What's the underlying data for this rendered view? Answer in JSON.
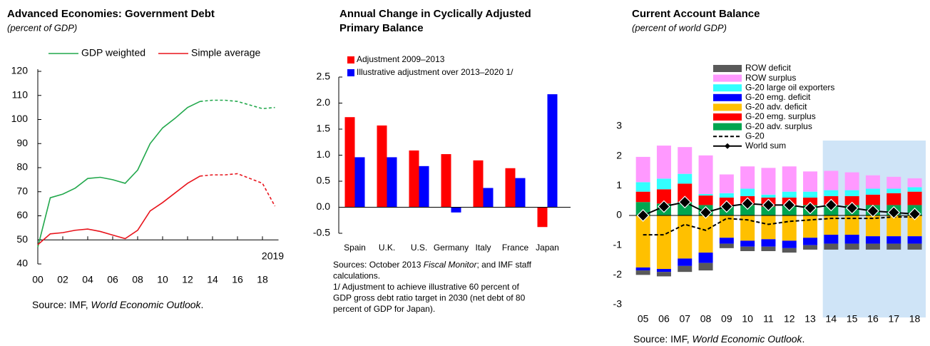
{
  "chart_data": [
    {
      "type": "line",
      "title": "Advanced Economies: Government Debt",
      "subtitle": "(percent of GDP)",
      "x": [
        2000,
        2001,
        2002,
        2003,
        2004,
        2005,
        2006,
        2007,
        2008,
        2009,
        2010,
        2011,
        2012,
        2013,
        2014,
        2015,
        2016,
        2017,
        2018,
        2019
      ],
      "xlim": [
        2000,
        2019
      ],
      "xticks": [
        {
          "value": 2000,
          "label": "00"
        },
        {
          "value": 2002,
          "label": "02"
        },
        {
          "value": 2004,
          "label": "04"
        },
        {
          "value": 2006,
          "label": "06"
        },
        {
          "value": 2008,
          "label": "08"
        },
        {
          "value": 2010,
          "label": "10"
        },
        {
          "value": 2012,
          "label": "12"
        },
        {
          "value": 2014,
          "label": "14"
        },
        {
          "value": 2016,
          "label": "16"
        },
        {
          "value": 2018,
          "label": "18"
        }
      ],
      "ylim": [
        40,
        120
      ],
      "yticks": [
        40,
        50,
        60,
        70,
        80,
        90,
        100,
        110,
        120
      ],
      "x_axis_at": 50,
      "projection_from": 2013,
      "series": [
        {
          "name": "GDP weighted",
          "color": "#22a84c",
          "values": [
            47,
            67.5,
            69,
            71.5,
            75.5,
            76,
            75,
            73.5,
            79,
            90,
            96.5,
            100.5,
            105,
            107.5,
            108,
            108,
            107.5,
            106,
            104.5,
            105
          ]
        },
        {
          "name": "Simple average",
          "color": "#e8141c",
          "values": [
            48,
            52.5,
            53,
            54,
            54.5,
            53.5,
            52,
            50.5,
            54,
            62,
            65.5,
            69.5,
            73.5,
            76.5,
            77,
            77,
            77.5,
            75.5,
            73.5,
            64
          ]
        }
      ],
      "annotation": "2019",
      "source": [
        {
          "text": "Source: IMF, "
        },
        {
          "text": "World Economic Outlook",
          "italic": true
        },
        {
          "text": "."
        }
      ]
    },
    {
      "type": "bar",
      "title": [
        "Annual Change in Cyclically Adjusted",
        "Primary Balance"
      ],
      "categories": [
        "Spain",
        "U.K.",
        "U.S.",
        "Germany",
        "Italy",
        "France",
        "Japan"
      ],
      "ylim": [
        -0.5,
        2.5
      ],
      "yticks": [
        -0.5,
        {
          "value": 0,
          "label": "0.0"
        },
        0.5,
        {
          "value": 1,
          "label": "1.0"
        },
        1.5,
        {
          "value": 2,
          "label": "2.0"
        },
        2.5
      ],
      "series": [
        {
          "name": "Adjustment 2009–2013",
          "color": "#ff0000",
          "values": [
            1.73,
            1.57,
            1.09,
            1.02,
            0.9,
            0.75,
            -0.38
          ]
        },
        {
          "name": "Illustrative adjustment over 2013–2020 1/",
          "color": "#0000ff",
          "values": [
            0.96,
            0.96,
            0.79,
            -0.1,
            0.37,
            0.56,
            2.17
          ]
        }
      ],
      "notes": [
        [
          {
            "text": "Sources: October 2013 "
          },
          {
            "text": "Fiscal Monitor",
            "italic": true
          },
          {
            "text": "; and IMF staff"
          }
        ],
        [
          {
            "text": "calculations."
          }
        ],
        [
          {
            "text": "1/ Adjustment to achieve illustrative 60 percent of"
          }
        ],
        [
          {
            "text": "GDP gross debt ratio target in 2030 (net debt of 80"
          }
        ],
        [
          {
            "text": "percent of GDP for Japan)."
          }
        ]
      ]
    },
    {
      "type": "stacked_bar",
      "title": "Current Account Balance",
      "subtitle": "(percent of world GDP)",
      "categories": [
        "05",
        "06",
        "07",
        "08",
        "09",
        "10",
        "11",
        "12",
        "13",
        "14",
        "15",
        "16",
        "17",
        "18"
      ],
      "ylim": [
        -3,
        3
      ],
      "yticks": [
        -3,
        -2,
        -1,
        0,
        1,
        2,
        3
      ],
      "projection_from": "14",
      "series": [
        {
          "name": "ROW deficit",
          "color": "#595959",
          "values": [
            -0.15,
            -0.15,
            -0.2,
            -0.25,
            -0.15,
            -0.15,
            -0.15,
            -0.15,
            -0.15,
            -0.2,
            -0.2,
            -0.2,
            -0.2,
            -0.2
          ]
        },
        {
          "name": "ROW surplus",
          "color": "#ff99ff",
          "values": [
            0.85,
            1.11,
            0.9,
            1.3,
            0.63,
            0.75,
            0.9,
            0.85,
            0.68,
            0.65,
            0.6,
            0.45,
            0.4,
            0.3
          ]
        },
        {
          "name": "G-20 large oil exporters",
          "color": "#33ffff",
          "values": [
            0.32,
            0.36,
            0.33,
            0.05,
            0.15,
            0.25,
            0.1,
            0.2,
            0.2,
            0.2,
            0.2,
            0.2,
            0.15,
            0.15
          ]
        },
        {
          "name": "G-20 emg. deficit",
          "color": "#0000ff",
          "values": [
            -0.1,
            -0.1,
            -0.25,
            -0.35,
            -0.2,
            -0.2,
            -0.25,
            -0.25,
            -0.25,
            -0.3,
            -0.3,
            -0.25,
            -0.25,
            -0.25
          ]
        },
        {
          "name": "G-20 adv. deficit",
          "color": "#ffc000",
          "values": [
            -1.75,
            -1.8,
            -1.45,
            -1.25,
            -0.75,
            -0.85,
            -0.8,
            -0.85,
            -0.75,
            -0.65,
            -0.65,
            -0.7,
            -0.7,
            -0.7
          ]
        },
        {
          "name": "G-20 emg. surplus",
          "color": "#ff0000",
          "values": [
            0.35,
            0.48,
            0.62,
            0.32,
            0.3,
            0.3,
            0.3,
            0.25,
            0.25,
            0.3,
            0.3,
            0.35,
            0.4,
            0.45
          ]
        },
        {
          "name": "G-20 adv. surplus",
          "color": "#00a550",
          "values": [
            0.45,
            0.4,
            0.45,
            0.35,
            0.3,
            0.35,
            0.3,
            0.35,
            0.35,
            0.35,
            0.35,
            0.35,
            0.35,
            0.35
          ]
        },
        {
          "name": "G-20",
          "type": "line",
          "dash": true,
          "color": "#000000",
          "values": [
            -0.65,
            -0.65,
            -0.3,
            -0.5,
            -0.1,
            -0.15,
            -0.3,
            -0.2,
            -0.15,
            -0.1,
            -0.1,
            -0.1,
            -0.05,
            -0.05
          ]
        },
        {
          "name": "World sum",
          "type": "line",
          "marker": "diamond",
          "color": "#000000",
          "values": [
            0,
            0.3,
            0.45,
            0.1,
            0.3,
            0.4,
            0.35,
            0.35,
            0.25,
            0.35,
            0.25,
            0.15,
            0.1,
            0.05
          ]
        }
      ],
      "source": [
        {
          "text": "Source: IMF, "
        },
        {
          "text": "World Economic Outlook",
          "italic": true
        },
        {
          "text": "."
        }
      ]
    }
  ]
}
